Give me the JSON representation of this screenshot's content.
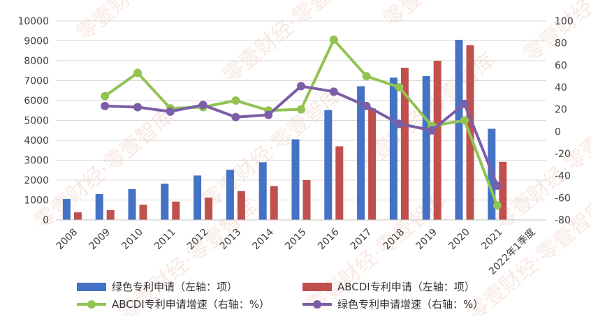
{
  "chart_data": {
    "type": "bar",
    "categories": [
      "2008",
      "2009",
      "2010",
      "2011",
      "2012",
      "2013",
      "2014",
      "2015",
      "2016",
      "2017",
      "2018",
      "2019",
      "2020",
      "2021",
      "2022年1季度"
    ],
    "y_left": {
      "ylim": [
        0,
        10000
      ],
      "ticks": [
        "0",
        "1000",
        "2000",
        "3000",
        "4000",
        "5000",
        "6000",
        "7000",
        "8000",
        "9000",
        "10000"
      ]
    },
    "y_right": {
      "ylim": [
        -80,
        100
      ],
      "ticks": [
        "-80",
        "-60",
        "-40",
        "-20",
        "0",
        "20",
        "40",
        "60",
        "80",
        "100"
      ]
    },
    "grid": true,
    "legend_position": "bottom",
    "series": [
      {
        "name": "绿色专利申请（左轴：项）",
        "type": "bar",
        "axis": "left",
        "color": "#4472c4",
        "values": [
          1050,
          1300,
          1550,
          1820,
          2230,
          2520,
          2900,
          4050,
          5520,
          6720,
          7150,
          7230,
          9050,
          4580,
          null
        ]
      },
      {
        "name": "ABCDI专利申请（左轴：项）",
        "type": "bar",
        "axis": "left",
        "color": "#c0504d",
        "values": [
          380,
          490,
          760,
          920,
          1120,
          1450,
          1700,
          2000,
          3700,
          5600,
          7650,
          8000,
          8780,
          2920,
          null
        ]
      },
      {
        "name": "ABCDI专利申请增速（右轴：%）",
        "type": "line",
        "axis": "right",
        "color": "#92c353",
        "values": [
          null,
          32,
          53,
          21,
          22,
          28,
          19,
          20,
          83,
          50,
          40,
          5,
          10,
          -67,
          null
        ]
      },
      {
        "name": "绿色专利申请增速（右轴：%）",
        "type": "line",
        "axis": "right",
        "color": "#7b5ea7",
        "values": [
          null,
          23,
          22,
          18,
          24,
          13,
          15,
          41,
          36,
          23,
          7,
          1,
          25,
          -49,
          null
        ]
      }
    ]
  },
  "watermark": {
    "text": "零壹财经·零壹智库"
  }
}
